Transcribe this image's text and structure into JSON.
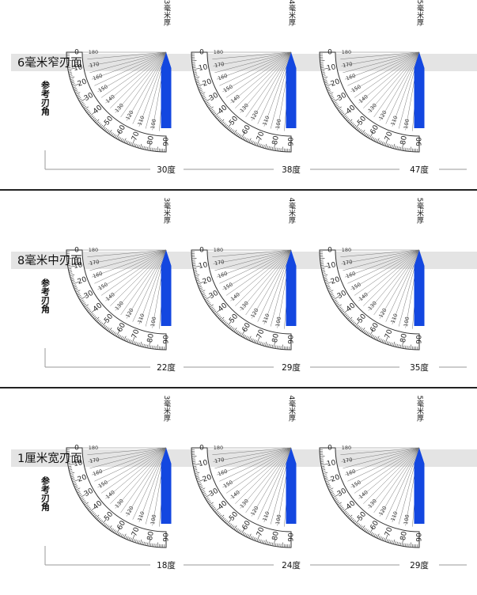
{
  "side_label": "参考刃角",
  "thickness_labels": [
    "3毫米厚",
    "4毫米厚",
    "5毫米厚"
  ],
  "protractor_ticks": [
    "0",
    "10",
    "20",
    "30",
    "40",
    "50",
    "60",
    "70",
    "80",
    "90",
    "100",
    "110",
    "120",
    "130",
    "140",
    "150",
    "160",
    "170",
    "180"
  ],
  "colors": {
    "blade": "#1347e0",
    "band": "#e4e4e4",
    "divider": "#222222",
    "scale": "#333333"
  },
  "sections": [
    {
      "title": "6毫米窄刃面",
      "angles": [
        {
          "value": 30,
          "label": "30度"
        },
        {
          "value": 38,
          "label": "38度"
        },
        {
          "value": 47,
          "label": "47度"
        }
      ]
    },
    {
      "title": "8毫米中刃面",
      "angles": [
        {
          "value": 22,
          "label": "22度"
        },
        {
          "value": 29,
          "label": "29度"
        },
        {
          "value": 35,
          "label": "35度"
        }
      ]
    },
    {
      "title": "1厘米宽刃面",
      "angles": [
        {
          "value": 18,
          "label": "18度"
        },
        {
          "value": 24,
          "label": "24度"
        },
        {
          "value": 29,
          "label": "29度"
        }
      ]
    }
  ]
}
